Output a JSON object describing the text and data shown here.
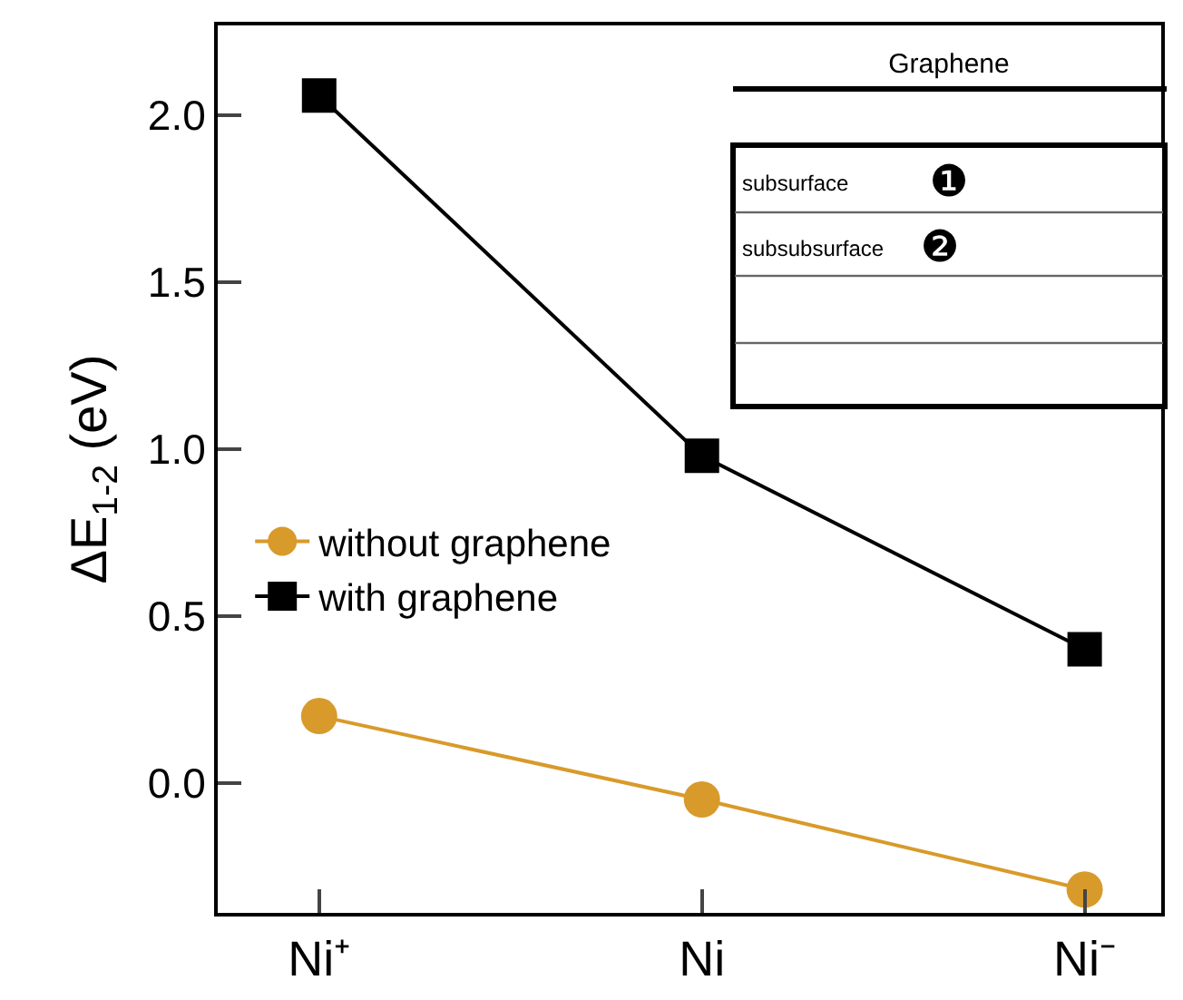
{
  "chart_data": {
    "type": "line",
    "ylabel": "ΔE$_{1-2}$ (eV)",
    "categories": [
      "Ni⁺",
      "Ni",
      "Ni⁻"
    ],
    "series": [
      {
        "name": "without graphene",
        "color": "#d89a2a",
        "marker": "circle",
        "values": [
          0.2,
          -0.05,
          -0.32
        ]
      },
      {
        "name": "with graphene",
        "color": "#000000",
        "marker": "square",
        "values": [
          2.06,
          0.98,
          0.4
        ]
      }
    ],
    "ylim": [
      -0.39,
      2.27
    ],
    "yticks": [
      {
        "value": 0,
        "label": "0.0"
      },
      0.5,
      {
        "value": 1,
        "label": "1.0"
      },
      1.5,
      {
        "value": 2,
        "label": "2.0"
      }
    ],
    "grid": false,
    "legend": "left",
    "line_style": "solid",
    "annotations": [
      "Graphene",
      "subsurface",
      "❶",
      "subsubsurface",
      "❷"
    ]
  }
}
